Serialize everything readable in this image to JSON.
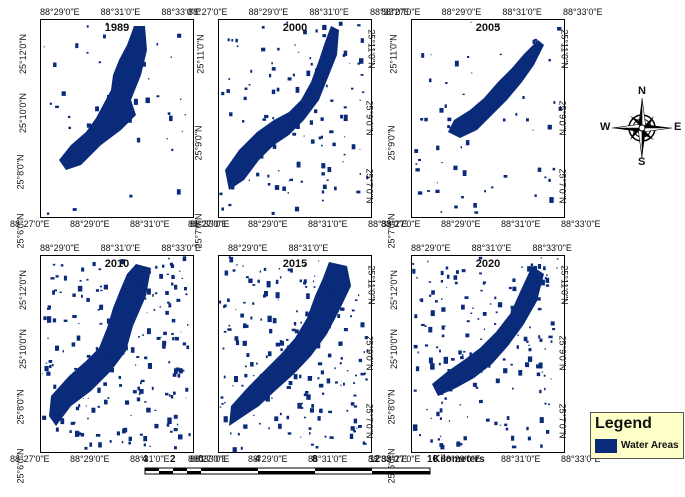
{
  "colors": {
    "water": "#0a2a7a",
    "legend_bg": "#ffffc8",
    "frame": "#000000"
  },
  "panels": [
    {
      "year": "1989",
      "top_ticks": [
        "88°29'0\"E",
        "88°31'0\"E",
        "88°33'0\"E"
      ],
      "bottom_ticks": [
        "88°27'0\"E",
        "88°29'0\"E",
        "88°31'0\"E",
        "88°33'0\"E"
      ],
      "left_ticks": [
        "25°12'0\"N",
        "25°10'0\"N",
        "25°8'0\"N",
        "25°6'0\"N"
      ],
      "right_ticks": []
    },
    {
      "year": "2000",
      "top_ticks": [
        "88°27'0\"E",
        "88°29'0\"E",
        "88°31'0\"E",
        "88°33'0\"E"
      ],
      "bottom_ticks": [
        "88°27'0\"E",
        "88°29'0\"E",
        "88°31'0\"E",
        "88°33'0\"E"
      ],
      "left_ticks": [
        "25°11'0\"N",
        "25°9'0\"N",
        "25°7'0\"N"
      ],
      "right_ticks": [
        "25°11'0\"N",
        "25°9'0\"N",
        "25°7'0\"N"
      ]
    },
    {
      "year": "2005",
      "top_ticks": [
        "88°27'0\"E",
        "88°29'0\"E",
        "88°31'0\"E",
        "88°33'0\"E"
      ],
      "bottom_ticks": [
        "88°27'0\"E",
        "88°29'0\"E",
        "88°31'0\"E",
        "88°33'0\"E"
      ],
      "left_ticks": [
        "25°11'0\"N",
        "25°9'0\"N",
        "25°7'0\"N"
      ],
      "right_ticks": [
        "25°11'0\"N",
        "25°9'0\"N",
        "25°7'0\"N"
      ]
    },
    {
      "year": "2010",
      "top_ticks": [
        "88°29'0\"E",
        "88°31'0\"E",
        "88°33'0\"E"
      ],
      "bottom_ticks": [
        "88°27'0\"E",
        "88°29'0\"E",
        "88°31'0\"E",
        "88°33'0\"E"
      ],
      "left_ticks": [
        "25°12'0\"N",
        "25°10'0\"N",
        "25°8'0\"N",
        "25°6'0\"N"
      ],
      "right_ticks": []
    },
    {
      "year": "2015",
      "top_ticks": [
        "88°29'0\"E",
        "88°31'0\"E"
      ],
      "bottom_ticks": [
        "88°27'0\"E",
        "88°29'0\"E",
        "88°31'0\"E",
        "88°33'0\"E"
      ],
      "left_ticks": [],
      "right_ticks": [
        "25°11'0\"N",
        "25°9'0\"N",
        "25°7'0\"N"
      ]
    },
    {
      "year": "2020",
      "top_ticks": [
        "88°29'0\"E",
        "88°31'0\"E",
        "88°33'0\"E"
      ],
      "bottom_ticks": [
        "88°27'0\"E",
        "88°29'0\"E",
        "88°31'0\"E",
        "88°33'0\"E"
      ],
      "left_ticks": [
        "25°12'0\"N",
        "25°10'0\"N",
        "25°8'0\"N",
        "25°6'0\"N"
      ],
      "right_ticks": [
        "25°11'0\"N",
        "25°9'0\"N",
        "25°7'0\"N"
      ]
    }
  ],
  "compass": {
    "n": "N",
    "s": "S",
    "e": "E",
    "w": "W"
  },
  "legend": {
    "title": "Legend",
    "item": "Water Areas"
  },
  "scale": {
    "labels": [
      "4",
      "2",
      "0",
      "4",
      "8",
      "12",
      "16"
    ],
    "unit": "Kilometers"
  }
}
